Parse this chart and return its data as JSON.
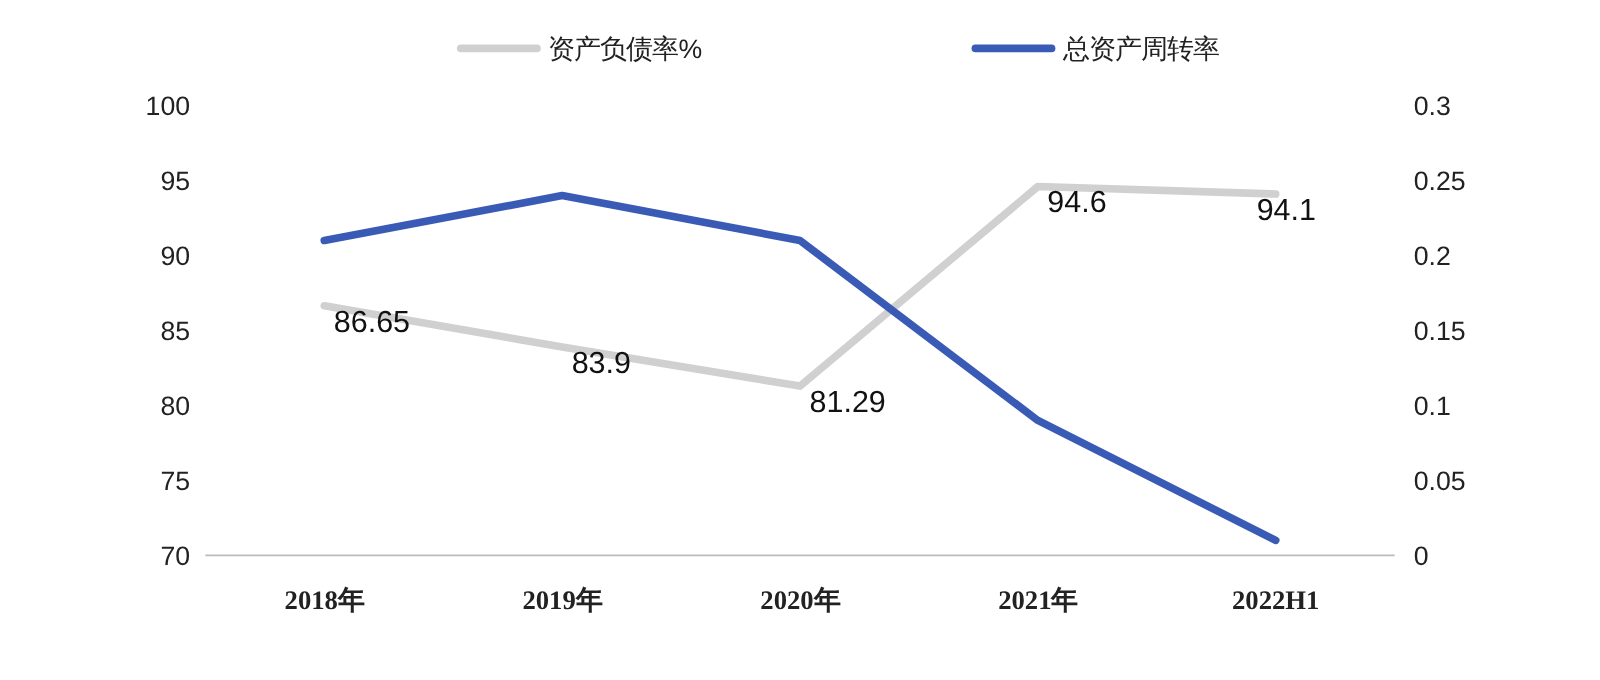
{
  "chart_data": {
    "type": "line",
    "categories": [
      "2018年",
      "2019年",
      "2020年",
      "2021年",
      "2022H1"
    ],
    "series": [
      {
        "name": "资产负债率%",
        "color": "#d0d0d0",
        "values": [
          86.65,
          83.9,
          81.29,
          94.6,
          94.1
        ],
        "value_labels": [
          "86.65",
          "83.9",
          "81.29",
          "94.6",
          "94.1"
        ]
      },
      {
        "name": "总资产周转率",
        "color": "#3a5bb5",
        "values": [
          0.21,
          0.24,
          0.21,
          0.09,
          0.01
        ],
        "axis": "y2"
      }
    ],
    "ylim": [
      70,
      100
    ],
    "yticks": [
      70,
      75,
      80,
      85,
      90,
      95,
      100
    ],
    "y2lim": [
      0,
      0.3
    ],
    "y2ticks": [
      0,
      0.05,
      0.1,
      0.15,
      0.2,
      0.25,
      0.3
    ],
    "legend": "top",
    "grid": false,
    "line_style": "solid"
  }
}
